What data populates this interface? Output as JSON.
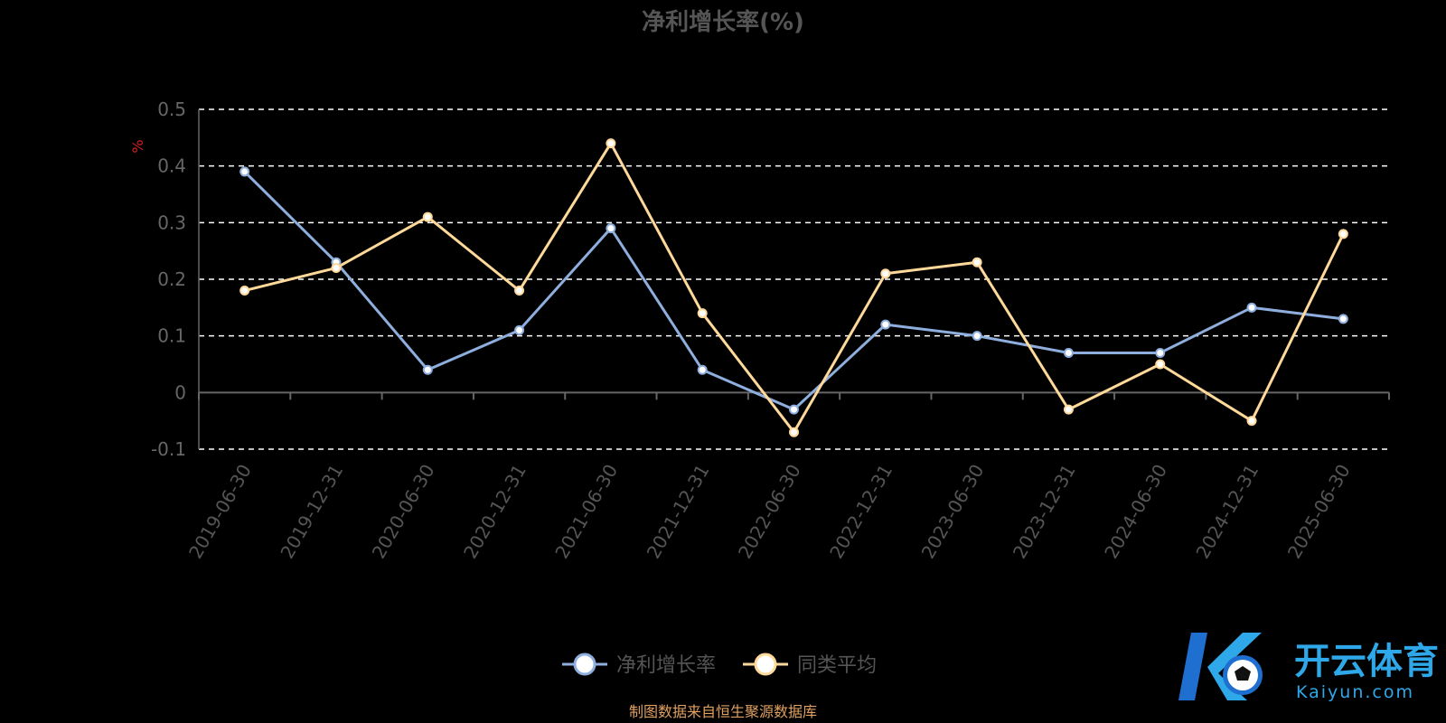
{
  "chart_data": {
    "type": "line",
    "title": "净利增长率(%)",
    "ylabel": "%",
    "xlabel": "",
    "categories": [
      "2019-06-30",
      "2019-12-31",
      "2020-06-30",
      "2020-12-31",
      "2021-06-30",
      "2021-12-31",
      "2022-06-30",
      "2022-12-31",
      "2023-06-30",
      "2023-12-31",
      "2024-06-30",
      "2024-12-31",
      "2025-06-30"
    ],
    "ylim": [
      -0.1,
      0.5
    ],
    "yticks": [
      "0.5",
      "0.4",
      "0.3",
      "0.2",
      "0.1",
      "0",
      "-0.1"
    ],
    "grid": true,
    "legend_position": "bottom",
    "series": [
      {
        "name": "净利增长率",
        "color": "#8eaede",
        "values": [
          0.39,
          0.23,
          0.04,
          0.11,
          0.29,
          0.04,
          -0.03,
          0.12,
          0.1,
          0.07,
          0.07,
          0.15,
          0.13
        ]
      },
      {
        "name": "同类平均",
        "color": "#ffd99a",
        "values": [
          0.18,
          0.22,
          0.31,
          0.18,
          0.44,
          0.14,
          -0.07,
          0.21,
          0.23,
          -0.03,
          0.05,
          -0.05,
          0.28
        ]
      }
    ]
  },
  "source": "制图数据来自恒生聚源数据库",
  "brand": {
    "name": "开云体育",
    "domain": "Kaiyun.com",
    "colors": [
      "#2ea8e8",
      "#1e6fd0",
      "#ffffff"
    ]
  },
  "colors": {
    "background": "#000000",
    "title": "#555555",
    "axis": "#666666",
    "grid": "#ffffff",
    "ylabel": "#d32020"
  }
}
